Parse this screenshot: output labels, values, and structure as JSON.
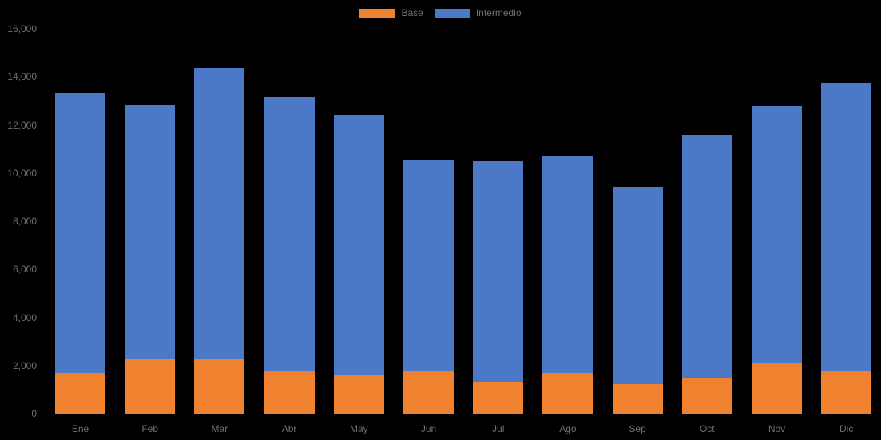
{
  "chart_data": {
    "type": "bar",
    "stacked": true,
    "title": "",
    "categories": [
      "Ene",
      "Feb",
      "Mar",
      "Abr",
      "May",
      "Jun",
      "Jul",
      "Ago",
      "Sep",
      "Oct",
      "Nov",
      "Dic"
    ],
    "series": [
      {
        "name": "Base",
        "color": "#F0812F",
        "values": [
          1700,
          2270,
          2300,
          1780,
          1580,
          1750,
          1340,
          1700,
          1240,
          1500,
          2120,
          1790
        ]
      },
      {
        "name": "Intermedio",
        "color": "#4C78C8",
        "values": [
          11610,
          10540,
          12060,
          11400,
          10850,
          8820,
          9150,
          9020,
          8180,
          10100,
          10660,
          11960
        ]
      }
    ],
    "totals": [
      13310,
      12810,
      14360,
      13180,
      12430,
      10570,
      10490,
      10720,
      9420,
      11600,
      12780,
      13750
    ],
    "xlabel": "",
    "ylabel": "",
    "ylim": [
      0,
      16000
    ],
    "yticks": [
      {
        "value": 0,
        "label": "0"
      },
      {
        "value": 2000,
        "label": "2,000"
      },
      {
        "value": 4000,
        "label": "4,000"
      },
      {
        "value": 6000,
        "label": "6,000"
      },
      {
        "value": 8000,
        "label": "8,000"
      },
      {
        "value": 10000,
        "label": "10,000"
      },
      {
        "value": 12000,
        "label": "12,000"
      },
      {
        "value": 14000,
        "label": "14,000"
      },
      {
        "value": 16000,
        "label": "16,000"
      }
    ],
    "legend_position": "top-center",
    "grid": false,
    "background": "#000000",
    "text_color": "#707070"
  }
}
